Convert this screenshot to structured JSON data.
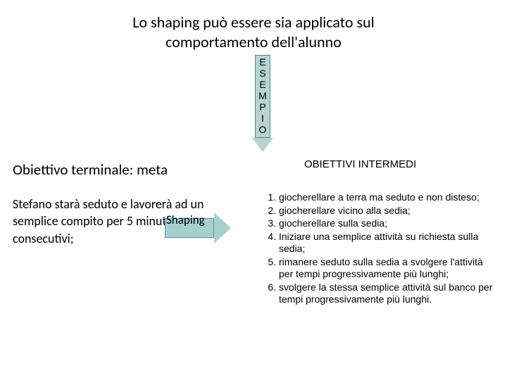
{
  "title": "Lo shaping può essere sia applicato sul comportamento dell'alunno",
  "vertical_arrow": {
    "letters": [
      "E",
      "S",
      "E",
      "M",
      "P",
      "I",
      "O"
    ],
    "fill": "#b8d4d0",
    "border": "#5a8a85"
  },
  "obiettivo_label": "Obiettivo terminale: meta",
  "stefano_text": "Stefano starà seduto e lavorerà ad un semplice compito per 5 minuti consecutivi;",
  "horiz_arrow": {
    "label": "Shaping",
    "fill": "#a8cfd0",
    "border": "#5a9099"
  },
  "obiettivi_intermedi_label": "OBIETTIVI INTERMEDI",
  "list": [
    "giocherellare a terra ma seduto e non disteso;",
    " giocherellare vicino alla sedia;",
    "giocherellare sulla sedia;",
    "Iniziare una semplice attività su richiesta sulla sedia;",
    "rimanere seduto sulla sedia a svolgere l'attività per tempi progressivamente più lunghi;",
    "svolgere la stessa semplice attività sul banco per tempi progressivamente più lunghi."
  ]
}
